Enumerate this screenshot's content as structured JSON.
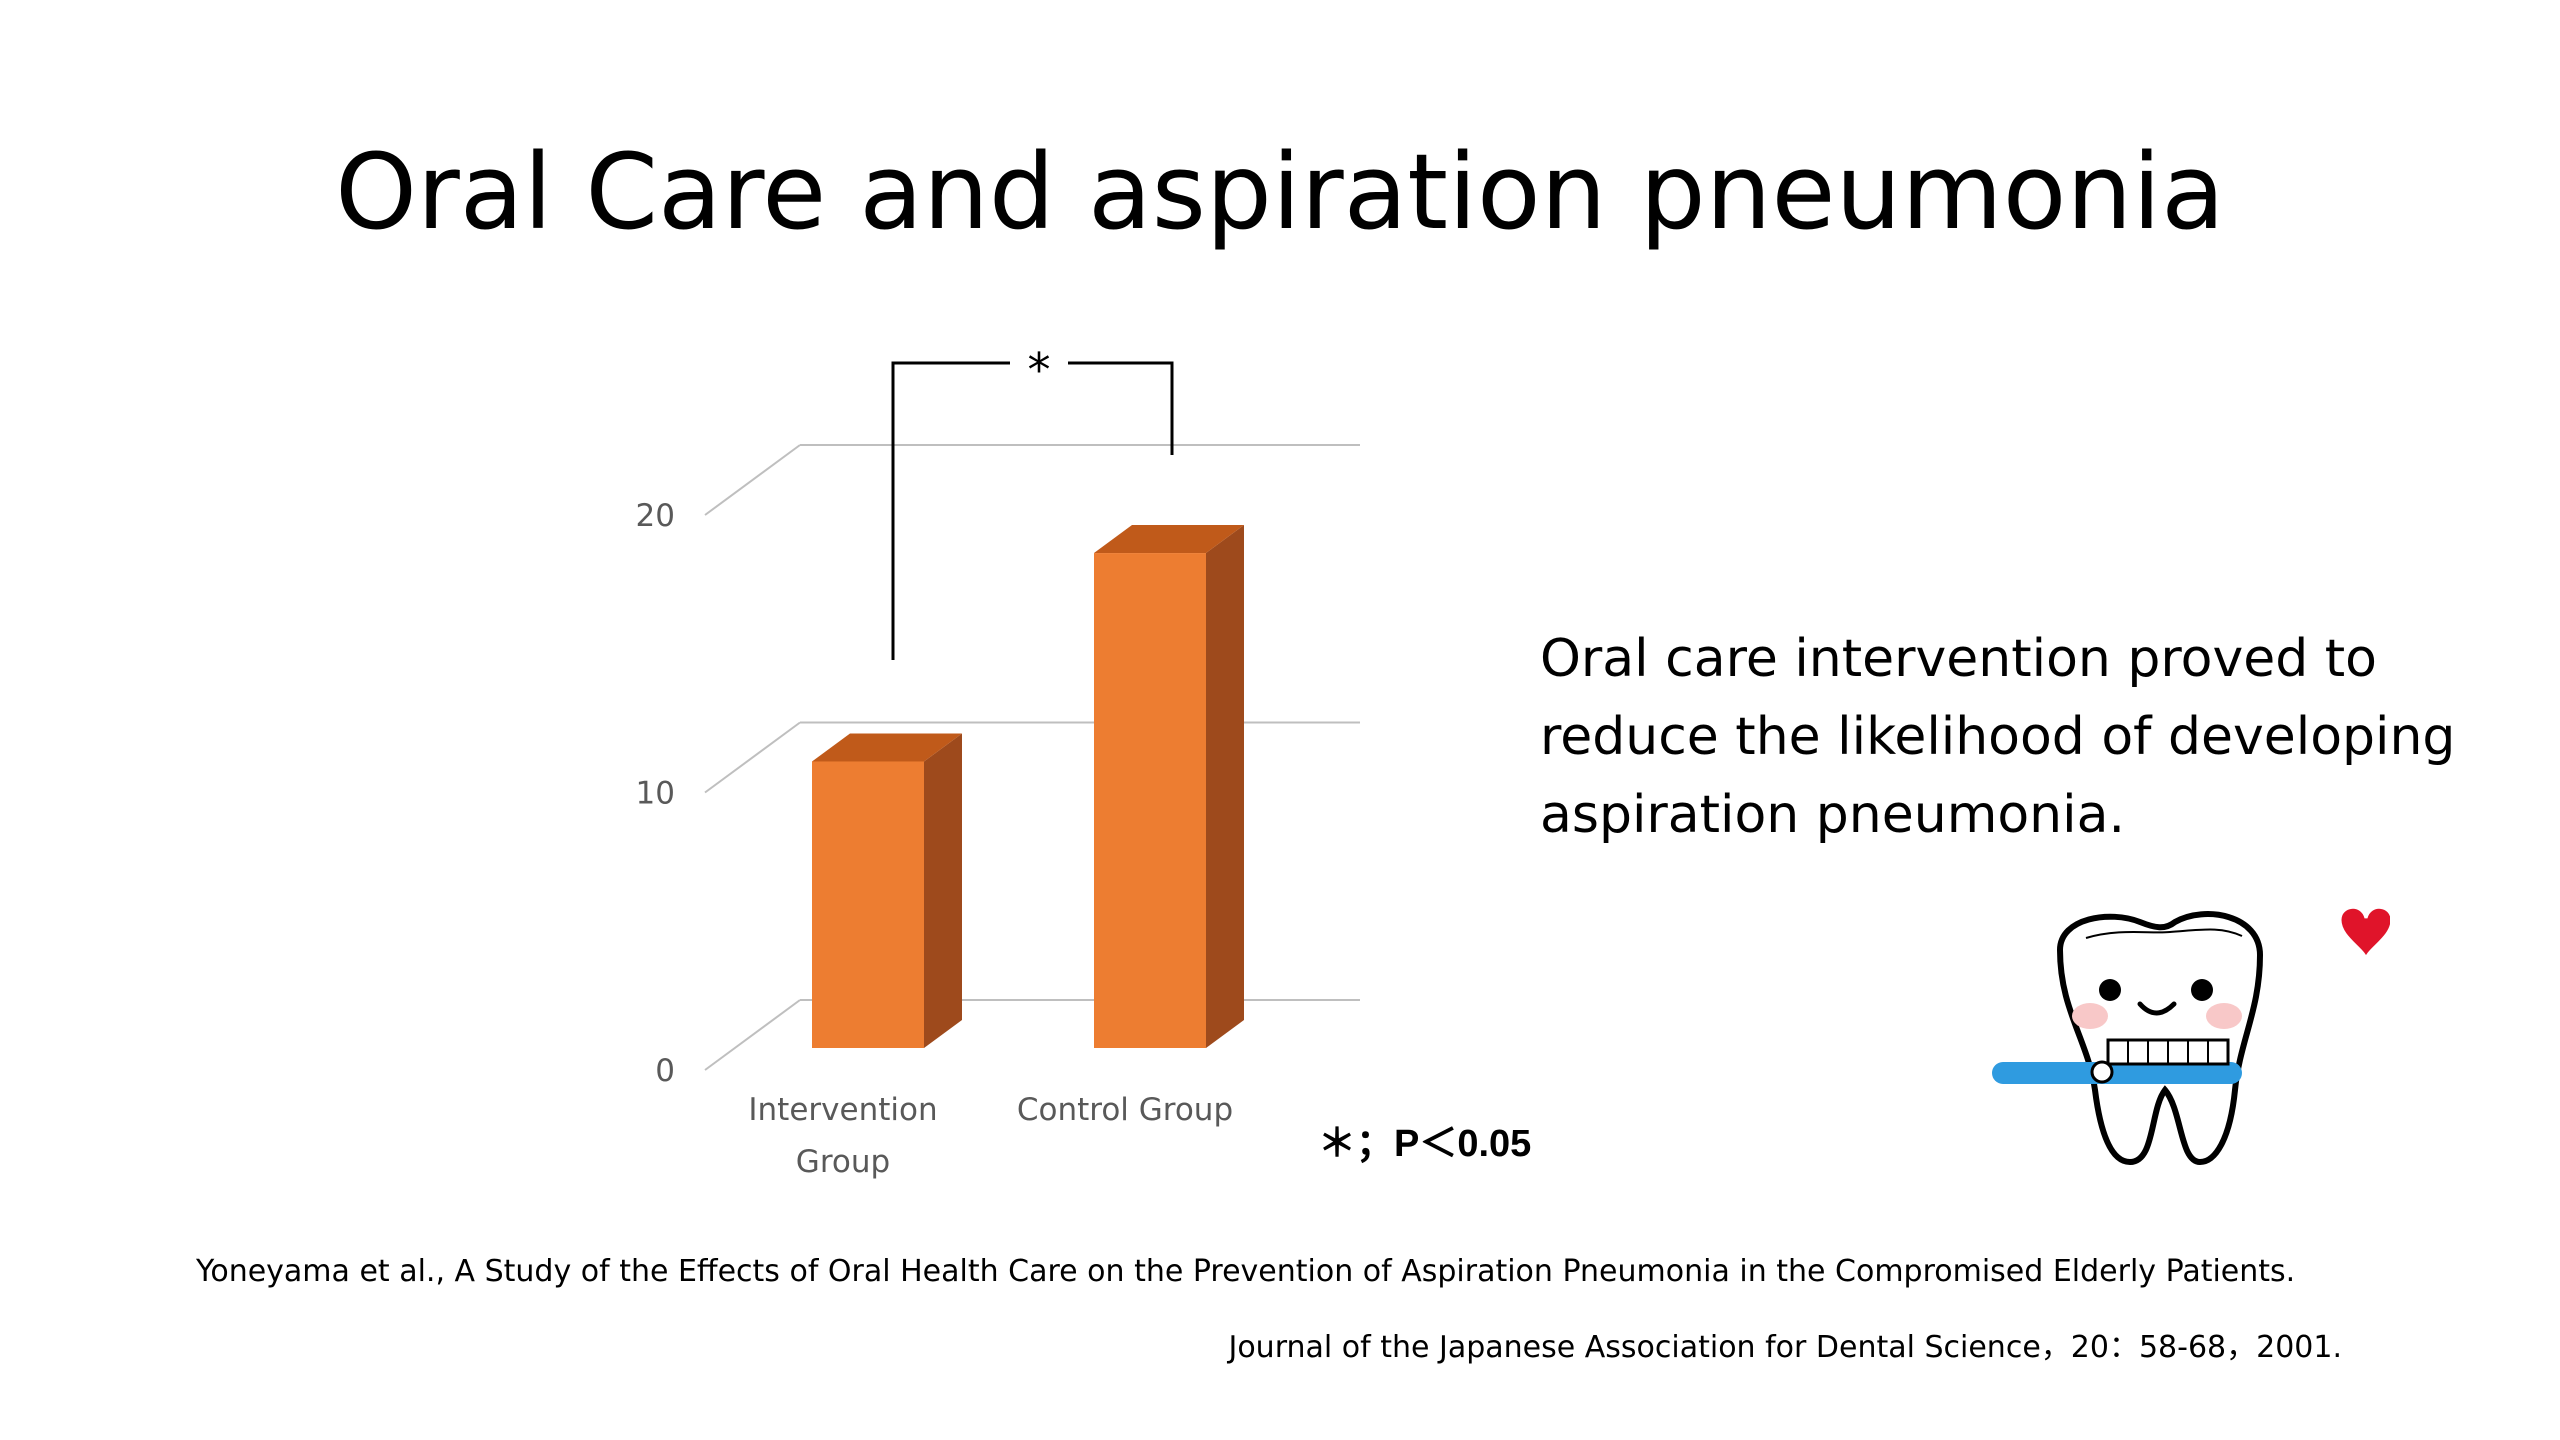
{
  "slide": {
    "title": "Oral Care and aspiration pneumonia",
    "conclusion": "Oral care intervention proved to reduce the likelihood of developing aspiration pneumonia.",
    "significance_note": "＊；P＜0.05",
    "citation_line1": "Yoneyama et al., A Study of the Effects of Oral Health Care on the Prevention of Aspiration Pneumonia in the Compromised Elderly Patients.",
    "citation_line2": "Journal of the Japanese Association for Dental Science，20：58-68，2001."
  },
  "chart_data": {
    "type": "bar",
    "style": "3d-column",
    "title": "",
    "xlabel": "",
    "ylabel": "",
    "categories": [
      "Intervention Group",
      "Control Group"
    ],
    "category_label_lines": [
      [
        "Intervention",
        "Group"
      ],
      [
        "Control Group"
      ]
    ],
    "values": [
      11,
      19
    ],
    "ylim": [
      0,
      20
    ],
    "yticks": [
      0,
      10,
      20
    ],
    "grid": true,
    "legend": false,
    "significance": {
      "pair": [
        0,
        1
      ],
      "symbol": "*"
    },
    "colors": {
      "bar_front": "#ed7d31",
      "bar_top": "#c05a1a",
      "bar_side": "#9e4a1c",
      "grid": "#bfbfbf"
    }
  },
  "mascot": {
    "icon": "tooth-brushing-icon",
    "heart_icon": "heart-icon",
    "heart_color": "#e0142a",
    "brush_color": "#2f9be0"
  }
}
